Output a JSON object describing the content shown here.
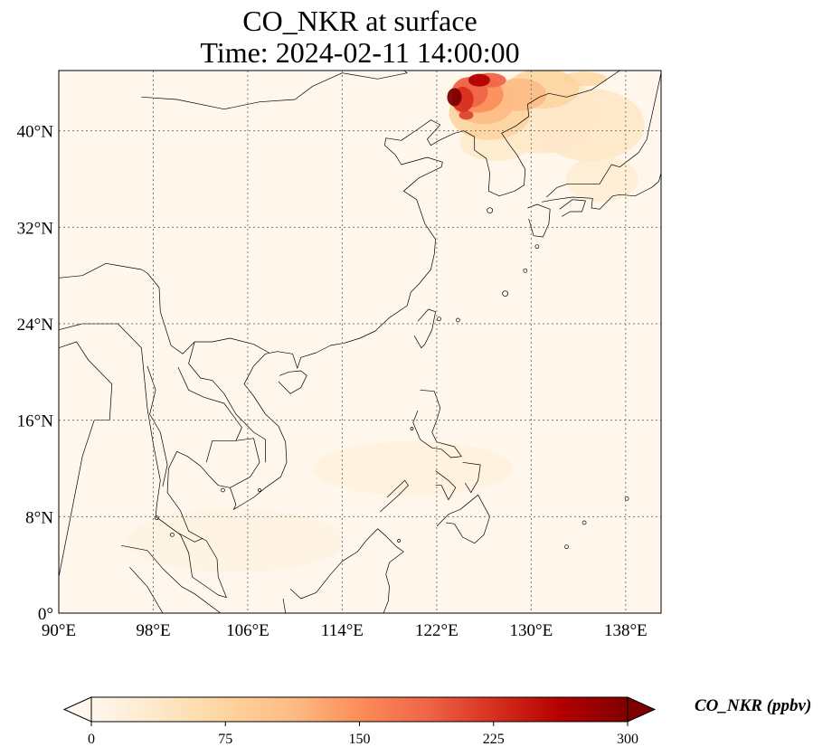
{
  "title_line1": "CO_NKR at surface",
  "title_line2": "Time: 2024-02-11 14:00:00",
  "map": {
    "projection": "PlateCarree",
    "lon_range": [
      90,
      141
    ],
    "lat_range": [
      0,
      45
    ],
    "gridlines": true,
    "lon_ticks": [
      90,
      98,
      106,
      114,
      122,
      130,
      138
    ],
    "lat_ticks": [
      0,
      8,
      16,
      24,
      32,
      40
    ],
    "lon_tick_labels": [
      "90°E",
      "98°E",
      "106°E",
      "114°E",
      "122°E",
      "130°E",
      "138°E"
    ],
    "lat_tick_labels": [
      "0°",
      "8°N",
      "16°N",
      "24°N",
      "32°N",
      "40°N"
    ],
    "field": "CO_NKR",
    "hotspot_region": "NE China / Korea",
    "hotspot_lon_range": [
      123,
      130
    ],
    "hotspot_lat_range": [
      40,
      45
    ]
  },
  "colorbar": {
    "label": "CO_NKR (ppbv)",
    "vmin": 0,
    "vmax": 300,
    "ticks": [
      0,
      75,
      150,
      225,
      300
    ],
    "tick_labels": [
      "0",
      "75",
      "150",
      "225",
      "300"
    ],
    "extend": "both",
    "colormap": "OrRd",
    "colors": [
      "#fff7ec",
      "#fee8c8",
      "#fdd49e",
      "#fdbb84",
      "#fc8d59",
      "#ef6548",
      "#d7301f",
      "#b30000",
      "#7f0000"
    ]
  }
}
